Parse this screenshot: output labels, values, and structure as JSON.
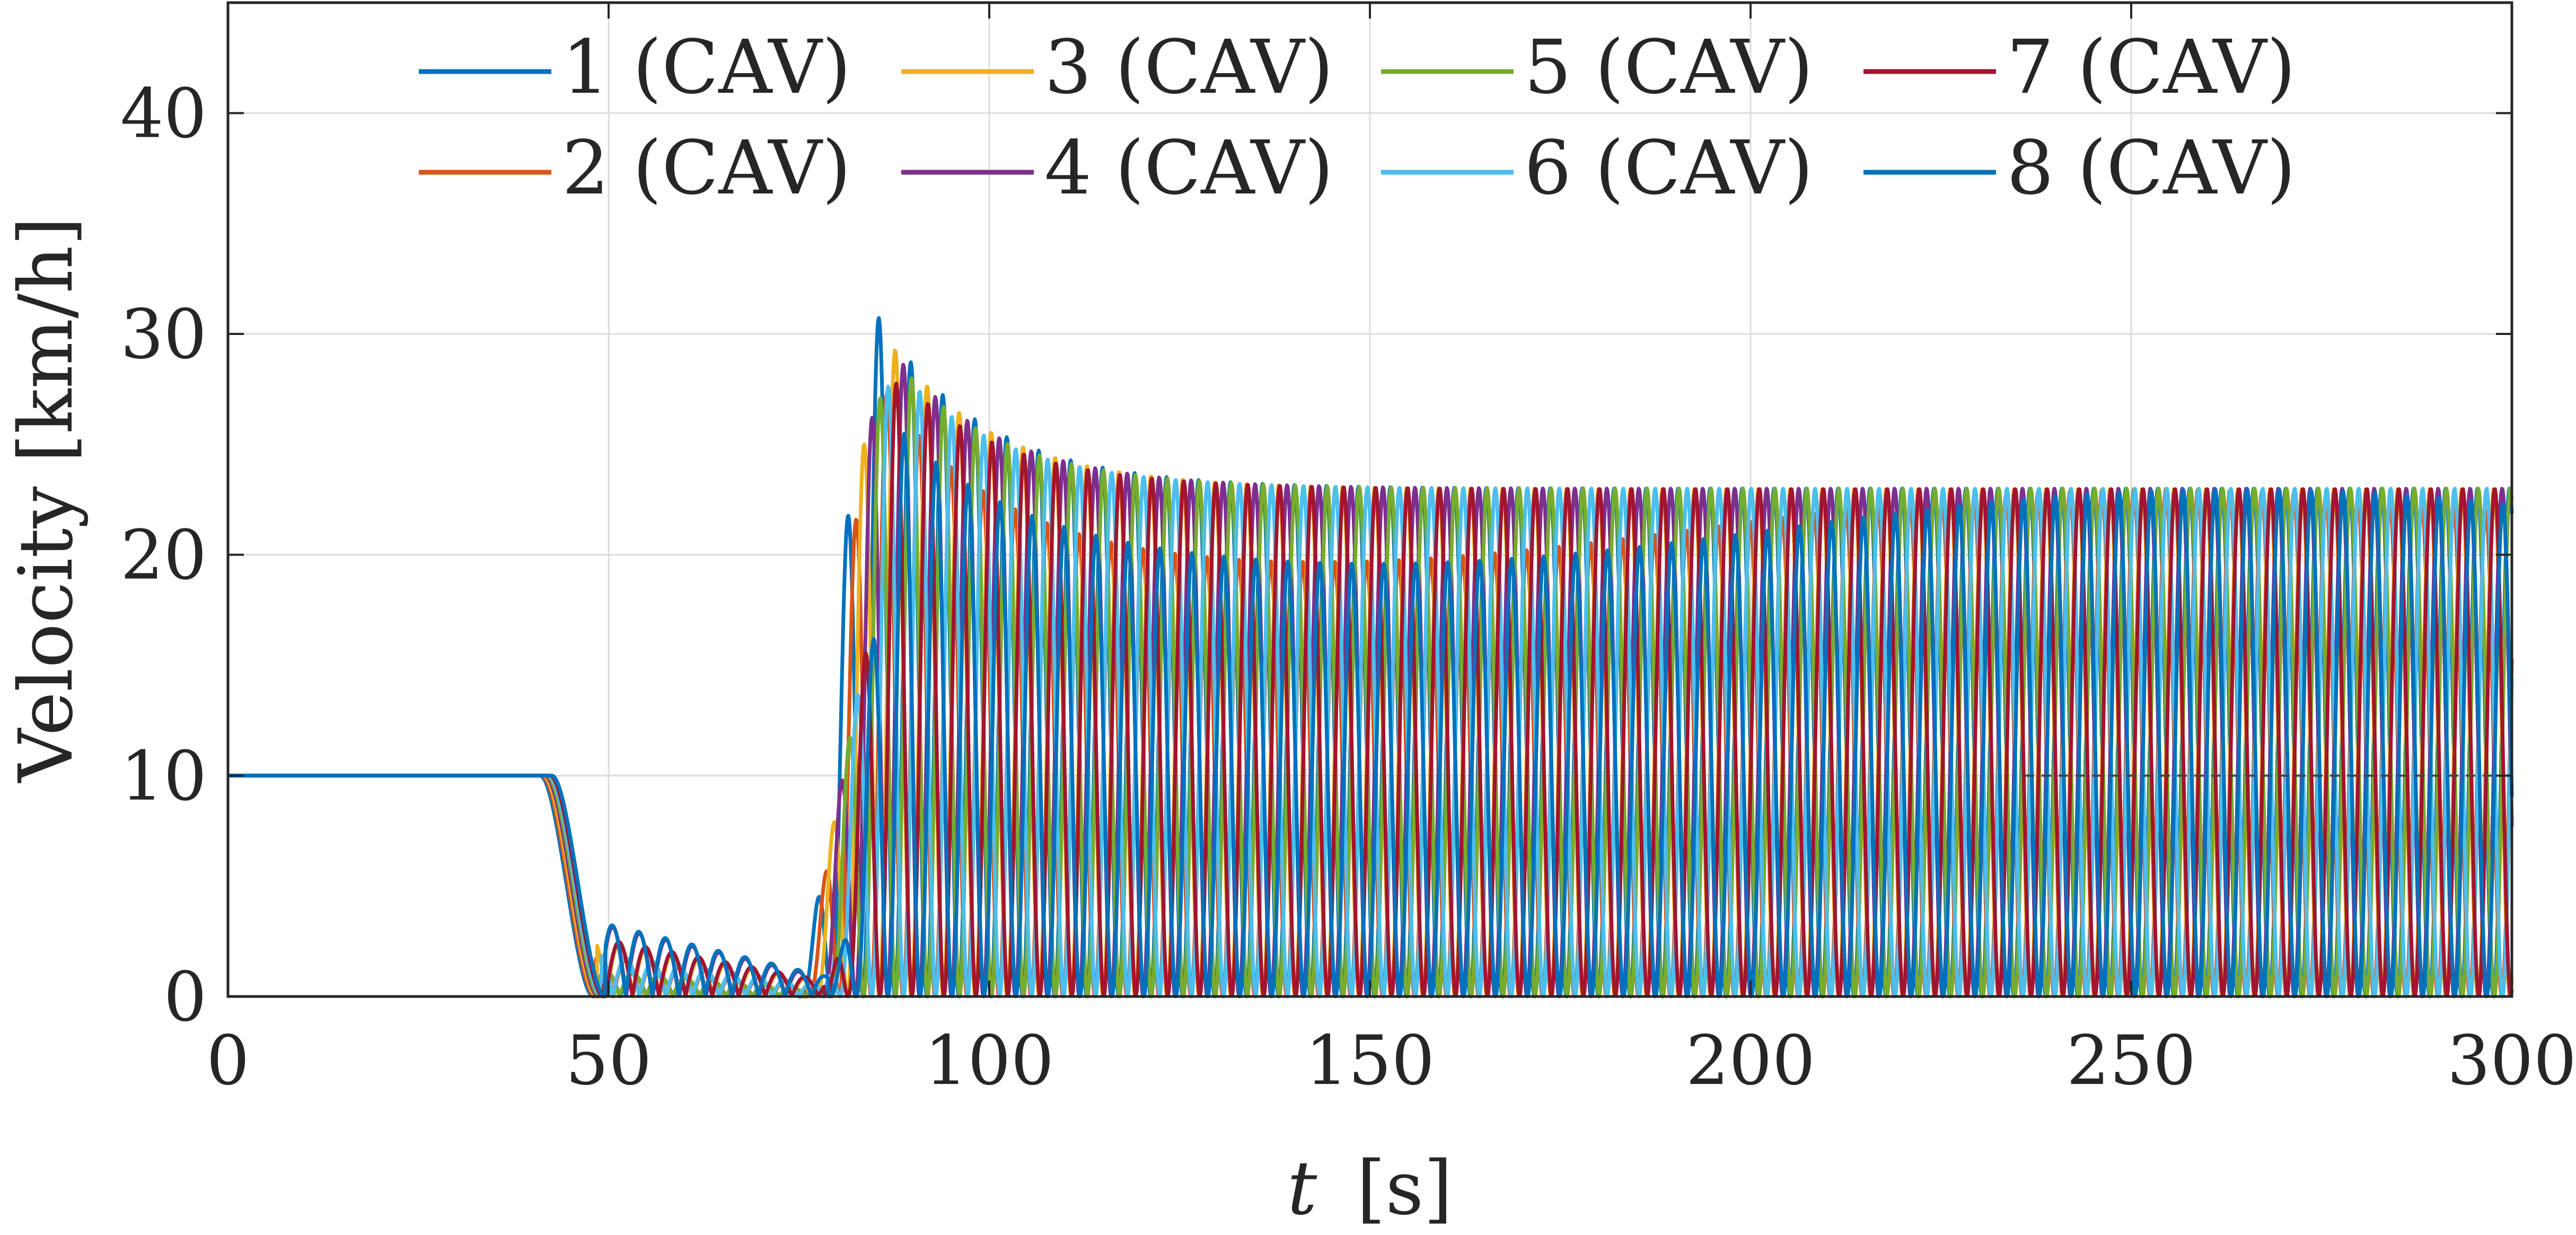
{
  "chart_data": {
    "type": "line",
    "title": "",
    "xlabel_var": "t",
    "xlabel_unit": "[s]",
    "ylabel": "Velocity [km/h]",
    "xlim": [
      0,
      300
    ],
    "ylim": [
      0,
      45
    ],
    "x_ticks": [
      "0",
      "50",
      "100",
      "150",
      "200",
      "250",
      "300"
    ],
    "y_ticks": [
      "0",
      "10",
      "20",
      "30",
      "40"
    ],
    "grid": true,
    "legend": {
      "placement": "top",
      "columns": 4
    },
    "series": [
      {
        "name": "1 (CAV)",
        "color": "#0072BD"
      },
      {
        "name": "2 (CAV)",
        "color": "#D95319"
      },
      {
        "name": "3 (CAV)",
        "color": "#EDB120"
      },
      {
        "name": "4 (CAV)",
        "color": "#7E2F8E"
      },
      {
        "name": "5 (CAV)",
        "color": "#77AC30"
      },
      {
        "name": "6 (CAV)",
        "color": "#4DBEEE"
      },
      {
        "name": "7 (CAV)",
        "color": "#A2142F"
      },
      {
        "name": "8 (CAV)",
        "color": "#0072BD"
      }
    ],
    "description_points": {
      "initial_velocity": 10,
      "braking_start_s": 41,
      "stop_window_s": [
        50,
        78
      ],
      "recovery_peak_s": 90,
      "recovery_peak_kmh": 31,
      "oscillation_period_s": 4.2,
      "oscillation_peak_end_kmh": 23,
      "reference_velocity": 10
    }
  }
}
